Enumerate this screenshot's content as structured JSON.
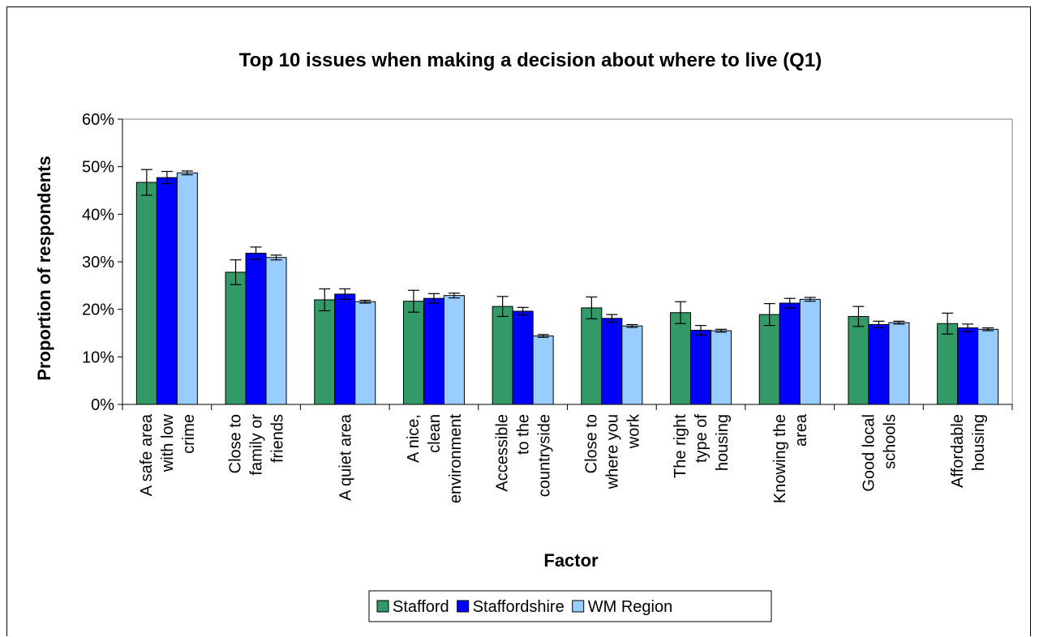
{
  "chart_data": {
    "type": "bar",
    "title": "Top 10 issues when making a decision about where to live (Q1)",
    "xlabel": "Factor",
    "ylabel": "Proportion of respondents",
    "ylim": [
      0,
      60
    ],
    "y_ticks": [
      "0%",
      "10%",
      "20%",
      "30%",
      "40%",
      "50%",
      "60%"
    ],
    "grid": false,
    "legend_position": "bottom",
    "plot_background": "#ffffff",
    "categories": [
      [
        "A safe area",
        "with low",
        "crime"
      ],
      [
        "Close to",
        "family or",
        "friends"
      ],
      [
        "A quiet area"
      ],
      [
        "A nice,",
        "clean",
        "environment"
      ],
      [
        "Accessible",
        "to the",
        "countryside"
      ],
      [
        "Close to",
        "where you",
        "work"
      ],
      [
        "The right",
        "type of",
        "housing"
      ],
      [
        "Knowing the",
        "area"
      ],
      [
        "Good local",
        "schools"
      ],
      [
        "Affordable",
        "housing"
      ]
    ],
    "series": [
      {
        "name": "Stafford",
        "color": "#339966",
        "values": [
          46.7,
          27.8,
          22.0,
          21.7,
          20.6,
          20.3,
          19.3,
          18.9,
          18.5,
          17.0
        ],
        "errors": [
          2.7,
          2.6,
          2.3,
          2.3,
          2.1,
          2.3,
          2.3,
          2.3,
          2.1,
          2.2
        ]
      },
      {
        "name": "Staffordshire",
        "color": "#0000ff",
        "values": [
          47.7,
          31.8,
          23.2,
          22.3,
          19.6,
          18.1,
          15.6,
          21.3,
          16.8,
          16.1
        ],
        "errors": [
          1.3,
          1.3,
          1.1,
          1.0,
          0.8,
          0.8,
          1.0,
          1.0,
          0.7,
          0.8
        ]
      },
      {
        "name": "WM Region",
        "color": "#99ccff",
        "values": [
          48.7,
          30.9,
          21.6,
          22.9,
          14.4,
          16.5,
          15.5,
          22.1,
          17.2,
          15.8
        ],
        "errors": [
          0.4,
          0.5,
          0.3,
          0.5,
          0.3,
          0.3,
          0.3,
          0.4,
          0.3,
          0.3
        ]
      }
    ]
  }
}
